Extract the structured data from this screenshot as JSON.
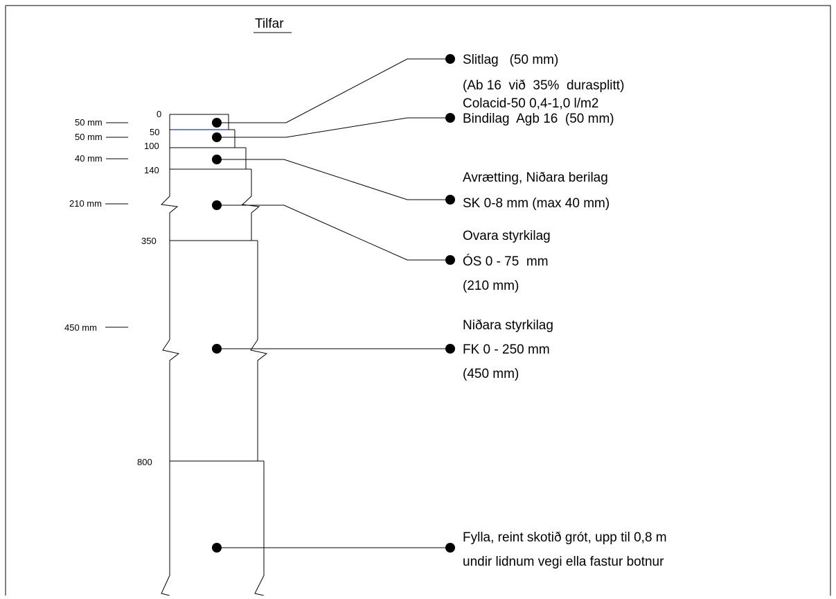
{
  "title": "Tilfar",
  "thickness_labels": [
    "50 mm",
    "50 mm",
    "40 mm",
    "210 mm",
    "450 mm"
  ],
  "depth_labels": [
    "0",
    "50",
    "100",
    "140",
    "350",
    "800"
  ],
  "layers": [
    {
      "lines": [
        "Slitlag   (50 mm)",
        "(Ab 16  við  35%  durasplitt)"
      ]
    },
    {
      "lines": [
        "Colacid-50 0,4-1,0 l/m2",
        "Bindilag  Agb 16  (50 mm)"
      ]
    },
    {
      "lines": [
        "Avrætting, Niðara berilag",
        "SK 0-8 mm (max 40 mm)"
      ]
    },
    {
      "lines": [
        "Ovara styrkilag",
        "ÓS 0 - 75  mm",
        "(210 mm)"
      ]
    },
    {
      "lines": [
        "Niðara styrkilag",
        "FK 0 - 250 mm",
        "(450 mm)"
      ]
    },
    {
      "lines": [
        "Fylla, reint skotið grót, upp til 0,8 m",
        "undir lidnum vegi ella fastur botnur"
      ]
    }
  ],
  "colors": {
    "line": "#000000",
    "accent_line": "#2233cc"
  }
}
